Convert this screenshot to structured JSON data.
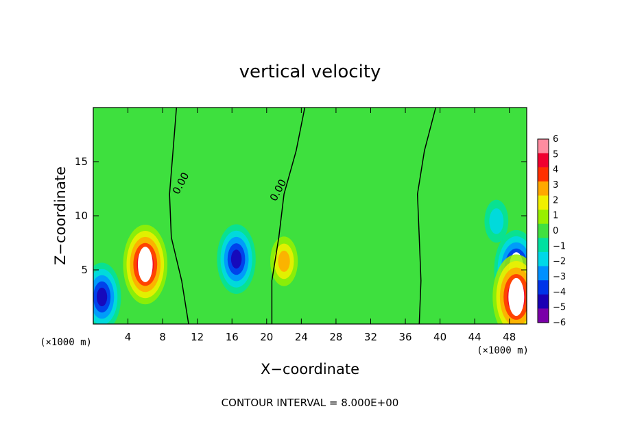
{
  "chart_data": {
    "type": "heatmap",
    "title": "vertical velocity",
    "xlabel": "X−coordinate",
    "ylabel": "Z−coordinate",
    "x_unit_left": "(×1000 m)",
    "x_unit_right": "(×1000 m)",
    "xlim": [
      0,
      50
    ],
    "ylim": [
      0,
      20
    ],
    "x_ticks": [
      4,
      8,
      12,
      16,
      20,
      24,
      28,
      32,
      36,
      40,
      44,
      48
    ],
    "y_ticks": [
      5,
      10,
      15
    ],
    "contour_interval_label": "CONTOUR INTERVAL = 8.000E+00",
    "zero_contour_labels": [
      "0.00",
      "0.00"
    ],
    "colorbar": {
      "ticks": [
        "6",
        "5",
        "4",
        "3",
        "2",
        "1",
        "0",
        "−1",
        "−2",
        "−3",
        "−4",
        "−5",
        "−6"
      ],
      "range": [
        -6,
        6
      ],
      "colors": [
        {
          "v": -6,
          "c": "#7a00a8"
        },
        {
          "v": -5,
          "c": "#1a00b4"
        },
        {
          "v": -4,
          "c": "#0034e8"
        },
        {
          "v": -3,
          "c": "#0090ff"
        },
        {
          "v": -2,
          "c": "#00d8e8"
        },
        {
          "v": -1,
          "c": "#00e0a0"
        },
        {
          "v": 0,
          "c": "#40e040"
        },
        {
          "v": 1,
          "c": "#98f000"
        },
        {
          "v": 2,
          "c": "#f0f000"
        },
        {
          "v": 3,
          "c": "#ffa800"
        },
        {
          "v": 4,
          "c": "#ff3000"
        },
        {
          "v": 5,
          "c": "#f00030"
        },
        {
          "v": 6,
          "c": "#ff8ca0"
        }
      ]
    },
    "features": [
      {
        "kind": "updraft",
        "x": 6.0,
        "z": 5.5,
        "w": 5.5
      },
      {
        "kind": "updraft",
        "x": 22.0,
        "z": 5.8,
        "w": 2.8
      },
      {
        "kind": "downdraft",
        "x": 16.5,
        "z": 6.0,
        "w": -4.6
      },
      {
        "kind": "downdraft",
        "x": 48.8,
        "z": 5.0,
        "w": -5.5
      },
      {
        "kind": "updraft",
        "x": 48.8,
        "z": 2.5,
        "w": 6.0
      },
      {
        "kind": "downdraft",
        "x": 46.5,
        "z": 9.5,
        "w": -2.2
      },
      {
        "kind": "downdraft",
        "x": 1.0,
        "z": 2.5,
        "w": -4.5
      }
    ]
  }
}
